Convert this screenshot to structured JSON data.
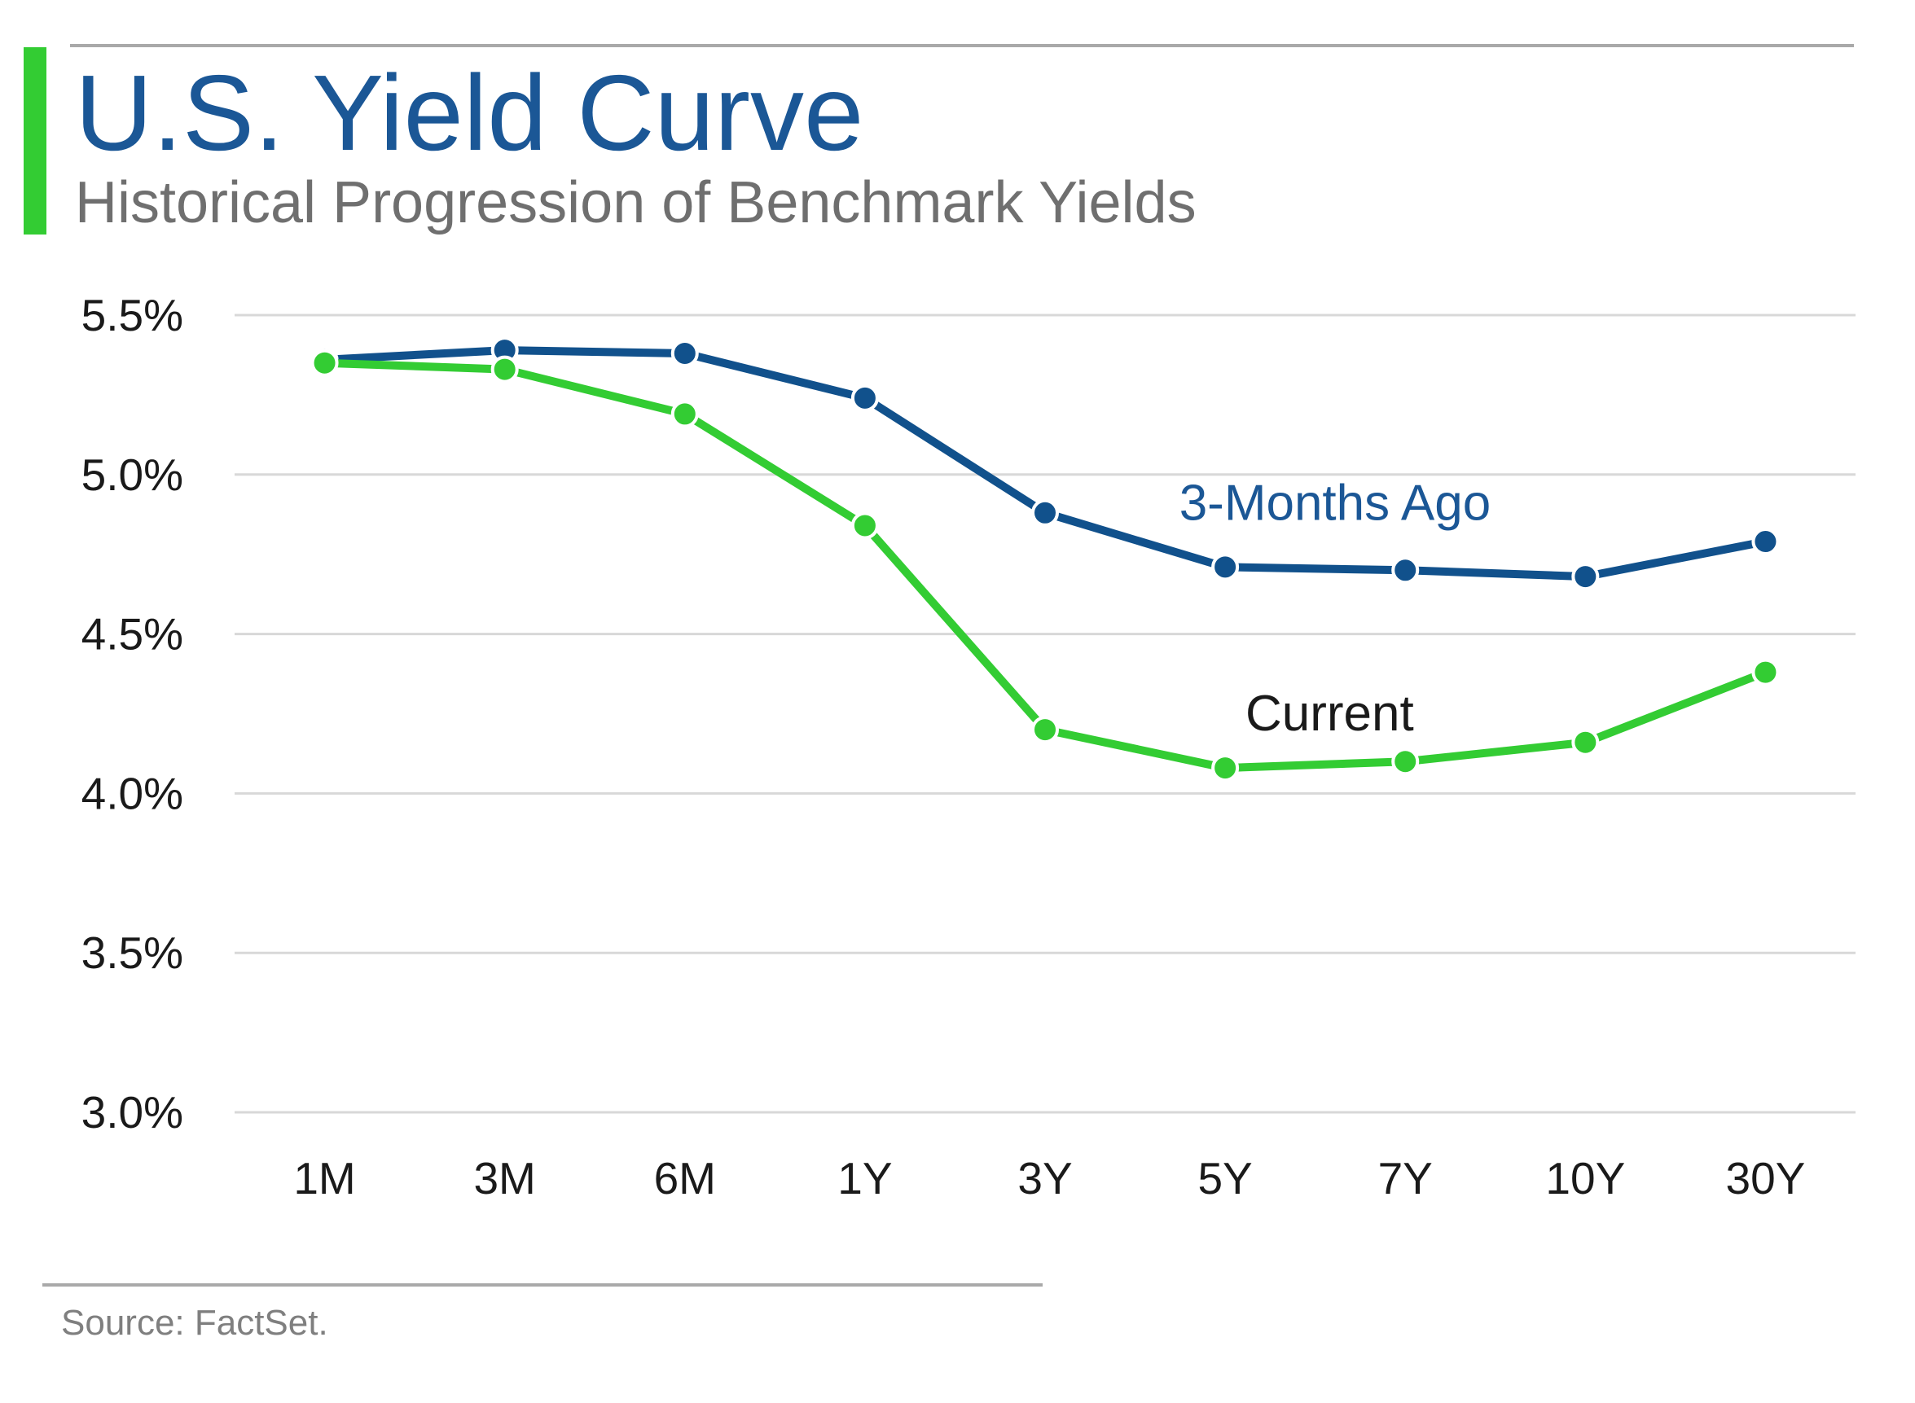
{
  "header": {
    "title": "U.S. Yield Curve",
    "subtitle": "Historical Progression of Benchmark Yields",
    "title_color": "#1b5796",
    "accent_color": "#33cc33"
  },
  "footer": {
    "source": "Source: FactSet."
  },
  "chart_data": {
    "type": "line",
    "title": "U.S. Yield Curve",
    "subtitle": "Historical Progression of Benchmark Yields",
    "categories": [
      "1M",
      "3M",
      "6M",
      "1Y",
      "3Y",
      "5Y",
      "7Y",
      "10Y",
      "30Y"
    ],
    "series": [
      {
        "name": "3-Months Ago",
        "color": "#11518c",
        "values": [
          5.36,
          5.39,
          5.38,
          5.24,
          4.88,
          4.71,
          4.7,
          4.68,
          4.79
        ]
      },
      {
        "name": "Current",
        "color": "#33cc33",
        "values": [
          5.35,
          5.33,
          5.19,
          4.84,
          4.2,
          4.08,
          4.1,
          4.16,
          4.38
        ]
      }
    ],
    "ylim": [
      3.0,
      5.5
    ],
    "ytick_step": 0.5,
    "yticks": [
      "5.5%",
      "5.0%",
      "4.5%",
      "4.0%",
      "3.5%",
      "3.0%"
    ],
    "xlabel": "",
    "ylabel": "",
    "grid": "horizontal",
    "gridline_color": "#d8d8d8",
    "tick_label_color": "#1a1a1a",
    "legend_position": "inline-annotations",
    "annotations": [
      {
        "text": "3-Months Ago",
        "color": "#1b5796",
        "x_index": 5.61,
        "y_value": 4.91,
        "series": "3-Months Ago"
      },
      {
        "text": "Current",
        "color": "#1a1a1a",
        "x_index": 5.58,
        "y_value": 4.25,
        "series": "Current"
      }
    ]
  }
}
